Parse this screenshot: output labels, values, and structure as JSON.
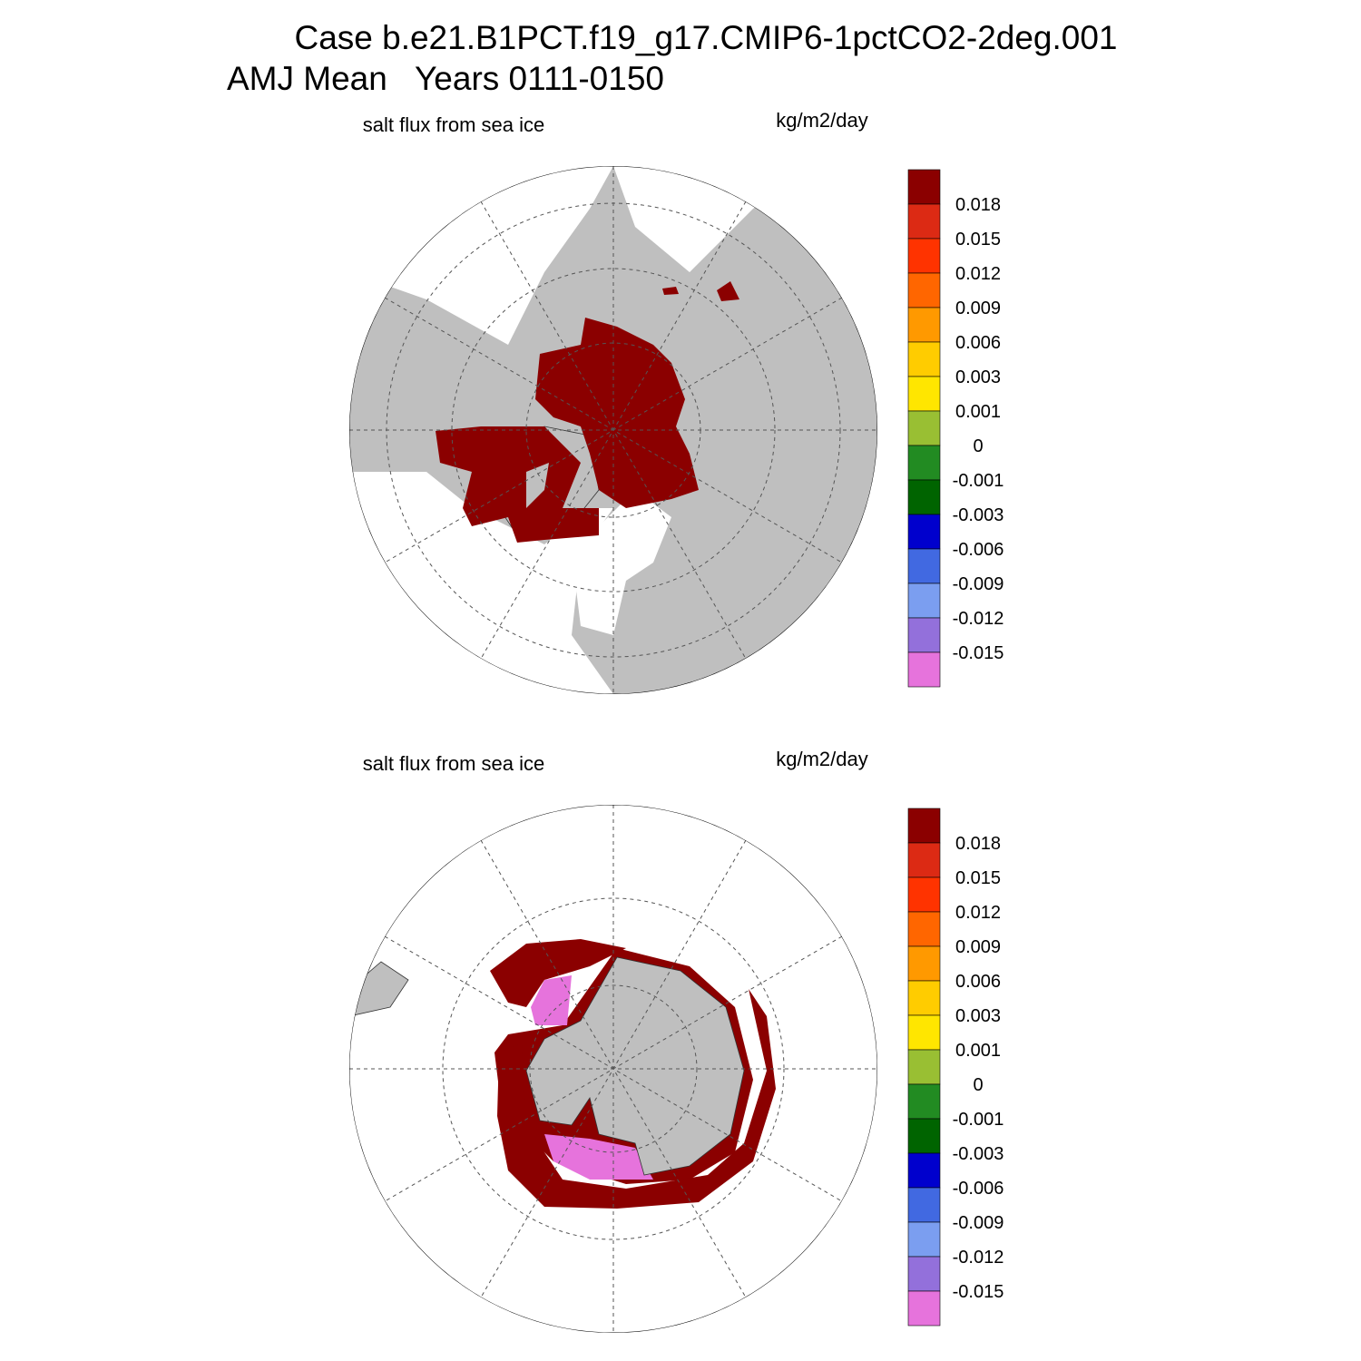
{
  "header": {
    "title": "Case b.e21.B1PCT.f19_g17.CMIP6-1pctCO2-2deg.001",
    "subtitle": "AMJ Mean   Years 0111-0150"
  },
  "panels": [
    {
      "label": "salt flux from sea ice",
      "units": "kg/m2/day",
      "colorbar": {
        "levels": [
          0.018,
          0.015,
          0.012,
          0.009,
          0.006,
          0.003,
          0.001,
          0,
          -0.001,
          -0.003,
          -0.006,
          -0.009,
          -0.012,
          -0.015
        ],
        "colors": [
          "#8b0000",
          "#dc2a14",
          "#ff3300",
          "#ff6600",
          "#ff9900",
          "#ffcc00",
          "#ffe600",
          "#99bf33",
          "#228b22",
          "#006400",
          "#0000cd",
          "#4169e1",
          "#7b9ef0",
          "#9370db",
          "#e673dc"
        ]
      }
    },
    {
      "label": "salt flux from sea ice",
      "units": "kg/m2/day",
      "colorbar": {
        "levels": [
          0.018,
          0.015,
          0.012,
          0.009,
          0.006,
          0.003,
          0.001,
          0,
          -0.001,
          -0.003,
          -0.006,
          -0.009,
          -0.012,
          -0.015
        ],
        "colors": [
          "#8b0000",
          "#dc2a14",
          "#ff3300",
          "#ff6600",
          "#ff9900",
          "#ffcc00",
          "#ffe600",
          "#99bf33",
          "#228b22",
          "#006400",
          "#0000cd",
          "#4169e1",
          "#7b9ef0",
          "#9370db",
          "#e673dc"
        ]
      }
    }
  ]
}
